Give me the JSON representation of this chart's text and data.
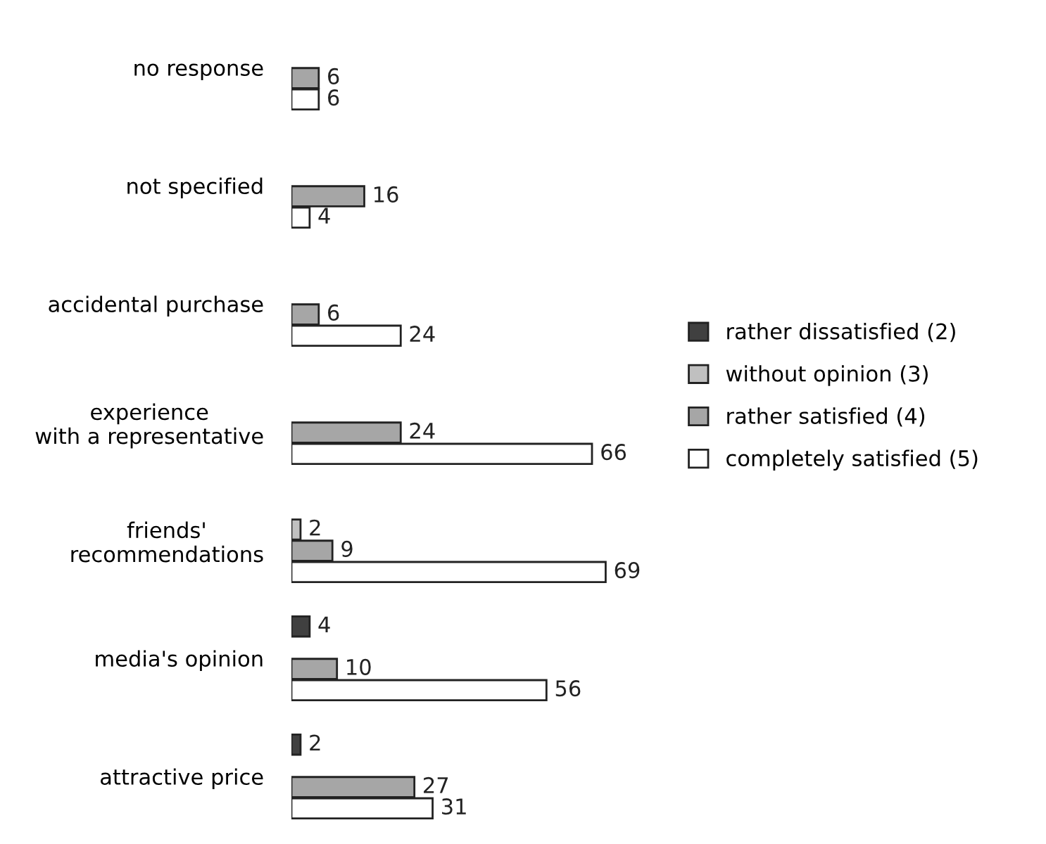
{
  "chart_data": {
    "type": "bar",
    "orientation": "horizontal",
    "categories": [
      "no response",
      "not specified",
      "accidental purchase",
      "experience\nwith a representative",
      "friends'\nrecommendations",
      "media's opinion",
      "attractive price"
    ],
    "series": [
      {
        "name": "rather dissatisfied (2)",
        "color": "#404040",
        "values": [
          null,
          null,
          null,
          null,
          null,
          4,
          2
        ]
      },
      {
        "name": "without opinion (3)",
        "color": "#c0c0c0",
        "values": [
          null,
          null,
          null,
          null,
          2,
          null,
          null
        ]
      },
      {
        "name": "rather satisfied (4)",
        "color": "#a6a6a6",
        "values": [
          6,
          16,
          6,
          24,
          9,
          10,
          27
        ]
      },
      {
        "name": "completely satisfied (5)",
        "color": "#ffffff",
        "values": [
          6,
          4,
          24,
          66,
          69,
          56,
          31
        ]
      }
    ],
    "data_labels": true,
    "tick_labels": "y",
    "grid": false,
    "legend": "right"
  }
}
